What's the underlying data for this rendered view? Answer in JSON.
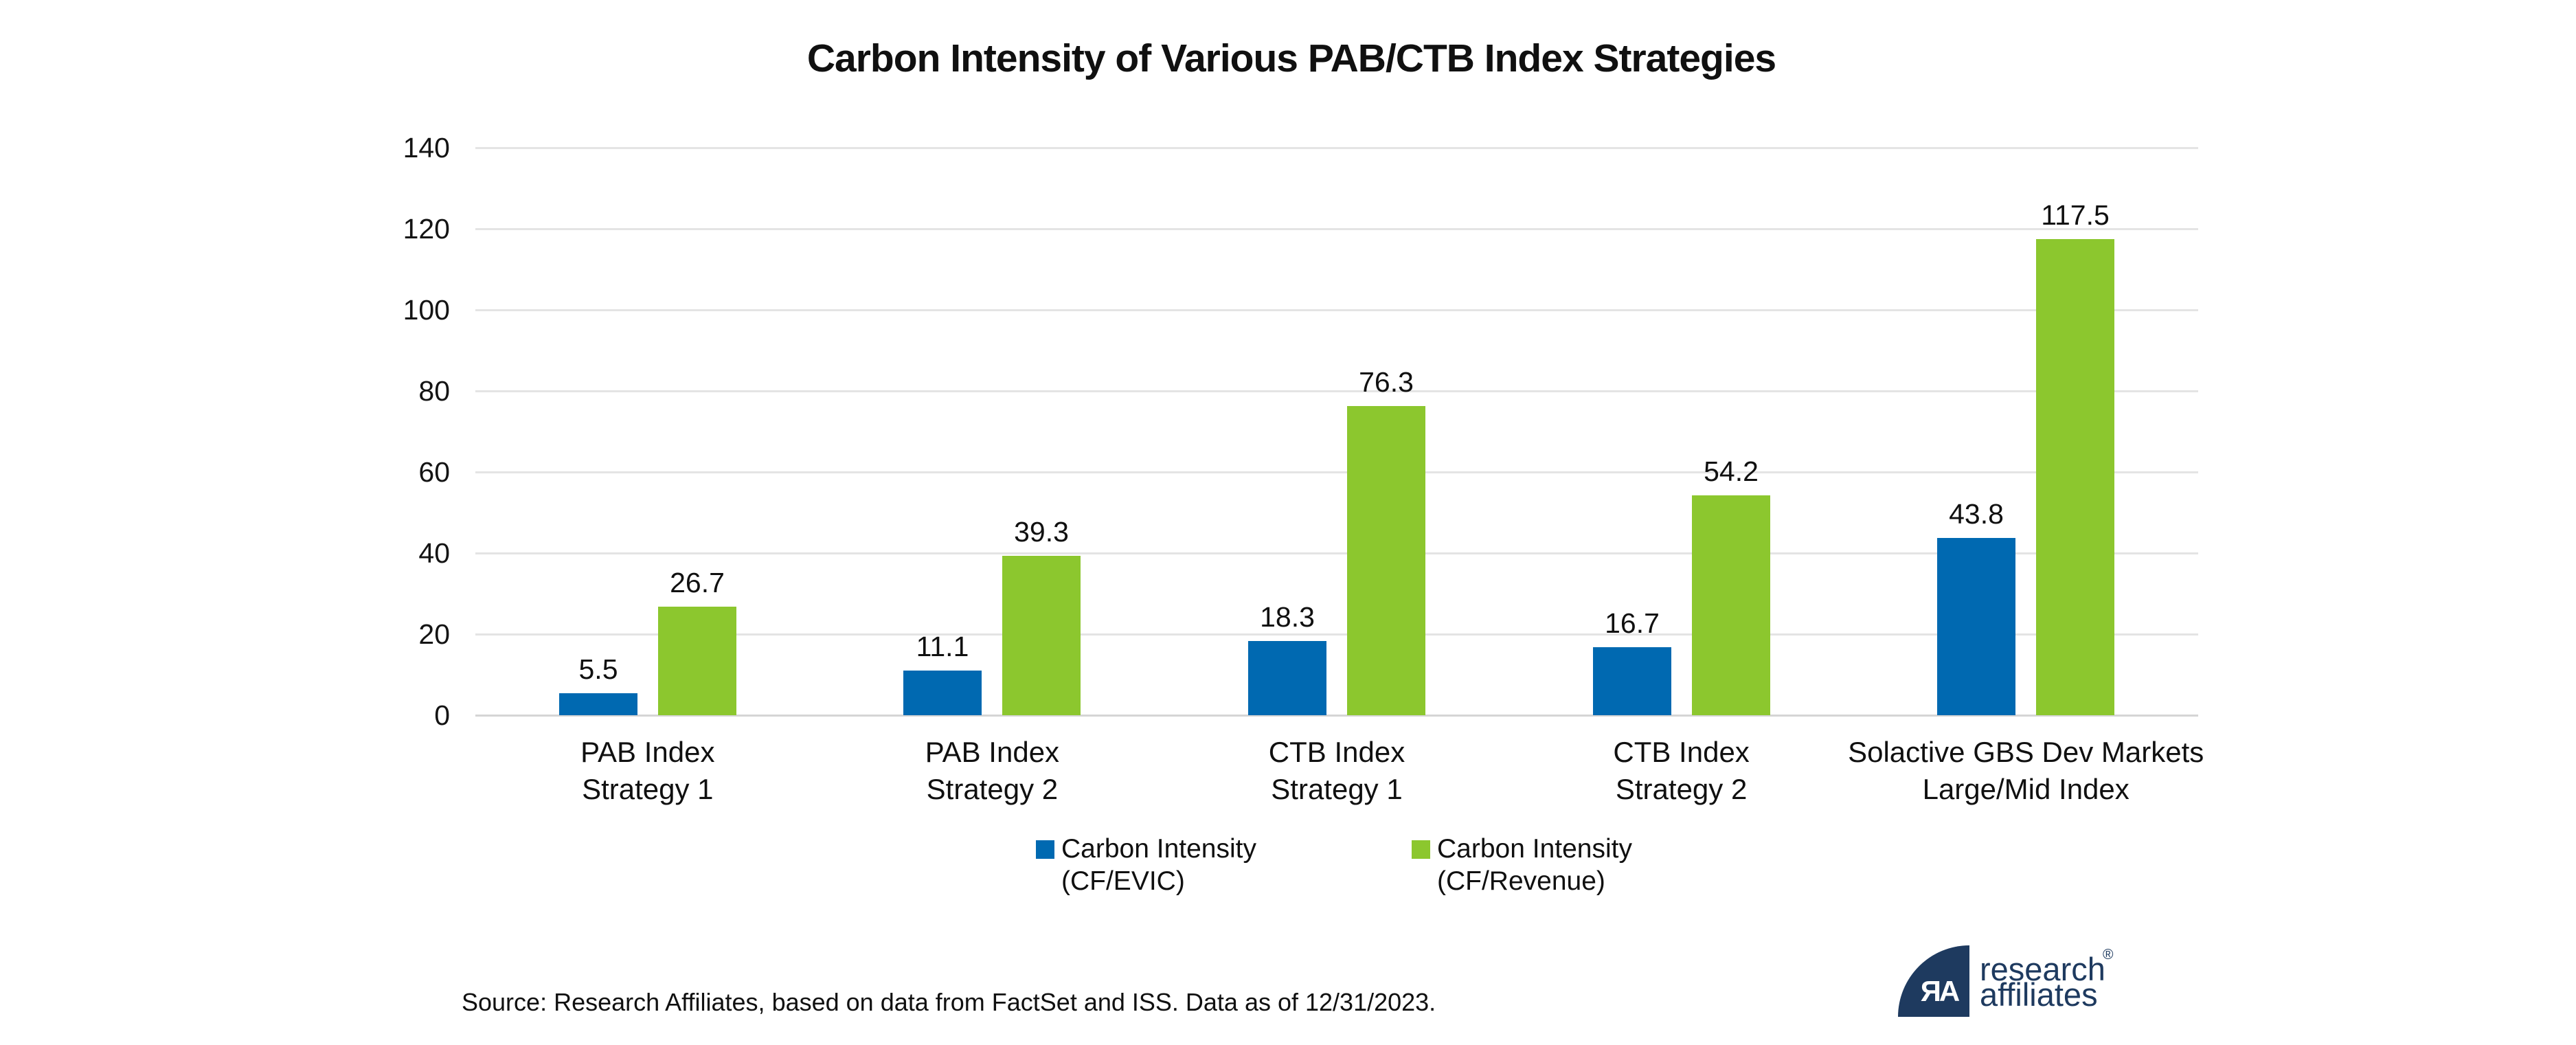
{
  "chart_data": {
    "type": "bar",
    "title": "Carbon Intensity of Various PAB/CTB Index Strategies",
    "categories": [
      [
        "PAB Index",
        "Strategy 1"
      ],
      [
        "PAB Index",
        "Strategy 2"
      ],
      [
        "CTB Index",
        "Strategy 1"
      ],
      [
        "CTB Index",
        "Strategy 2"
      ],
      [
        "Solactive GBS Dev Markets",
        "Large/Mid Index"
      ]
    ],
    "series": [
      {
        "name": "Carbon Intensity (CF/EVIC)",
        "legend_lines": [
          "Carbon Intensity",
          "(CF/EVIC)"
        ],
        "color": "#0069B1",
        "values": [
          5.5,
          11.1,
          18.3,
          16.7,
          43.8
        ]
      },
      {
        "name": "Carbon Intensity (CF/Revenue)",
        "legend_lines": [
          "Carbon Intensity",
          "(CF/Revenue)"
        ],
        "color": "#8CC72E",
        "values": [
          26.7,
          39.3,
          76.3,
          54.2,
          117.5
        ]
      }
    ],
    "xlabel": "",
    "ylabel": "",
    "ylim": [
      0,
      140
    ],
    "yticks": [
      0,
      20,
      40,
      60,
      80,
      100,
      120,
      140
    ],
    "grid": true,
    "legend_position": "bottom",
    "value_labels": true
  },
  "footer": {
    "source": "Source: Research Affiliates, based on data from FactSet and ISS. Data as of 12/31/2023."
  },
  "logo": {
    "monogram": "ЯA",
    "line1": "research",
    "line2": "affiliates",
    "registered": "®",
    "color": "#1E3A5F"
  },
  "style_colors": {
    "grid": "#E4E4E4",
    "baseline": "#D5D5D5",
    "text": "#111111"
  }
}
